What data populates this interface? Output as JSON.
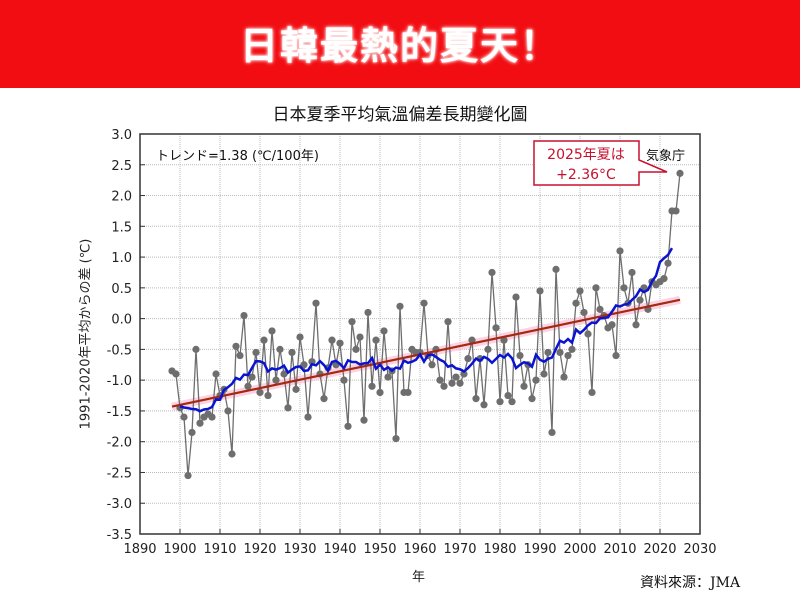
{
  "banner": {
    "title": "日韓最熱的夏天！",
    "color": "#f20d12"
  },
  "source": "資料來源：JMA",
  "chart_data": {
    "type": "line",
    "title": "日本夏季平均氣溫偏差長期變化圖",
    "xlabel": "年",
    "ylabel": "1991-2020年平均からの差 (℃)",
    "xlim": [
      1890,
      2030
    ],
    "ylim": [
      -3.5,
      3.0
    ],
    "xticks": [
      1890,
      1900,
      1910,
      1920,
      1930,
      1940,
      1950,
      1960,
      1970,
      1980,
      1990,
      2000,
      2010,
      2020,
      2030
    ],
    "yticks": [
      "3.0",
      "2.5",
      "2.0",
      "1.5",
      "1.0",
      "0.5",
      "0.0",
      "-0.5",
      "-1.0",
      "-1.5",
      "-2.0",
      "-2.5",
      "-3.0",
      "-3.5"
    ],
    "grid": true,
    "trend_label": "トレンド=1.38 (℃/100年)",
    "agency_label": "気象庁",
    "callout": {
      "line1": "2025年夏は",
      "line2": "+2.36°C",
      "color": "#c8102e"
    },
    "colors": {
      "points": "#6e6e6e",
      "running_mean": "#0a14d0",
      "trend": "#a32a10",
      "trend_band": "#ffc0d8"
    },
    "x_start": 1898,
    "values": [
      -0.85,
      -0.9,
      -1.45,
      -1.6,
      -2.55,
      -1.85,
      -0.5,
      -1.7,
      -1.6,
      -1.55,
      -1.6,
      -0.9,
      -1.25,
      -1.15,
      -1.5,
      -2.2,
      -0.45,
      -0.6,
      0.05,
      -1.1,
      -0.95,
      -0.55,
      -1.2,
      -0.35,
      -1.25,
      -0.2,
      -1.0,
      -0.5,
      -0.9,
      -1.45,
      -0.55,
      -1.15,
      -0.3,
      -0.75,
      -1.6,
      -0.7,
      0.25,
      -0.9,
      -1.3,
      -0.8,
      -0.35,
      -0.75,
      -0.4,
      -1.0,
      -1.75,
      -0.05,
      -0.5,
      -0.3,
      -1.65,
      0.1,
      -1.1,
      -0.35,
      -1.2,
      -0.2,
      -0.95,
      -0.85,
      -1.95,
      0.2,
      -1.2,
      -1.2,
      -0.5,
      -0.55,
      -0.55,
      0.25,
      -0.6,
      -0.75,
      -0.5,
      -1.0,
      -1.1,
      -0.05,
      -1.05,
      -0.95,
      -1.05,
      -0.9,
      -0.65,
      -0.35,
      -1.3,
      -0.65,
      -1.4,
      -0.5,
      0.75,
      -0.15,
      -1.35,
      -0.35,
      -1.25,
      -1.35,
      0.35,
      -0.6,
      -1.1,
      -0.75,
      -1.3,
      -1.0,
      0.45,
      -0.9,
      -0.55,
      -1.85,
      0.8,
      -0.55,
      -0.95,
      -0.6,
      -0.5,
      0.25,
      0.45,
      0.1,
      -0.25,
      -1.2,
      0.5,
      0.15,
      0.05,
      -0.15,
      -0.1,
      -0.6,
      1.1,
      0.5,
      0.25,
      0.75,
      -0.1,
      0.3,
      0.5,
      0.15,
      0.6,
      0.55,
      0.6,
      0.65,
      0.9,
      1.75,
      1.75,
      2.36
    ]
  }
}
